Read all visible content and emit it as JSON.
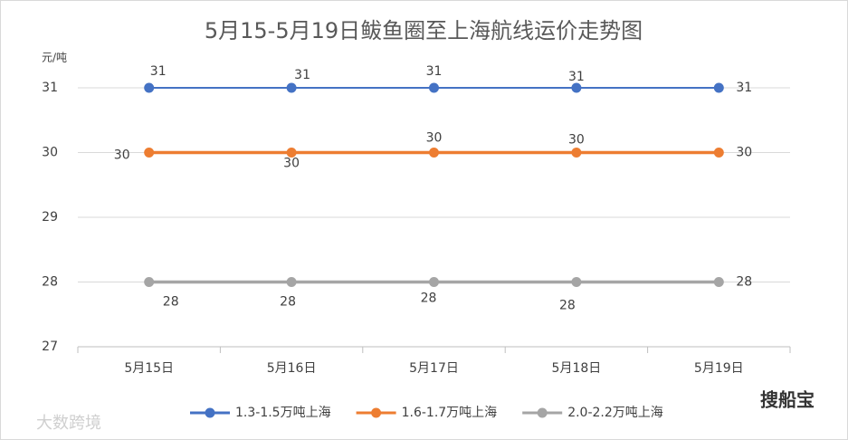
{
  "chart_data": {
    "type": "line",
    "title": "5月15-5月19日鲅鱼圈至上海航线运价走势图",
    "y_unit": "元/吨",
    "categories": [
      "5月15日",
      "5月16日",
      "5月17日",
      "5月18日",
      "5月19日"
    ],
    "series": [
      {
        "name": "1.3-1.5万吨上海",
        "color": "#4472c4",
        "values": [
          31,
          31,
          31,
          31,
          31
        ]
      },
      {
        "name": "1.6-1.7万吨上海",
        "color": "#ed7d31",
        "values": [
          30,
          30,
          30,
          30,
          30
        ]
      },
      {
        "name": "2.0-2.2万吨上海",
        "color": "#a5a5a5",
        "values": [
          28,
          28,
          28,
          28,
          28
        ]
      }
    ],
    "ylim": [
      27,
      31
    ],
    "yticks": [
      27,
      28,
      29,
      30,
      31
    ],
    "grid": true,
    "legend": "bottom",
    "watermarks": [
      "大数跨境",
      "搜船宝"
    ]
  }
}
